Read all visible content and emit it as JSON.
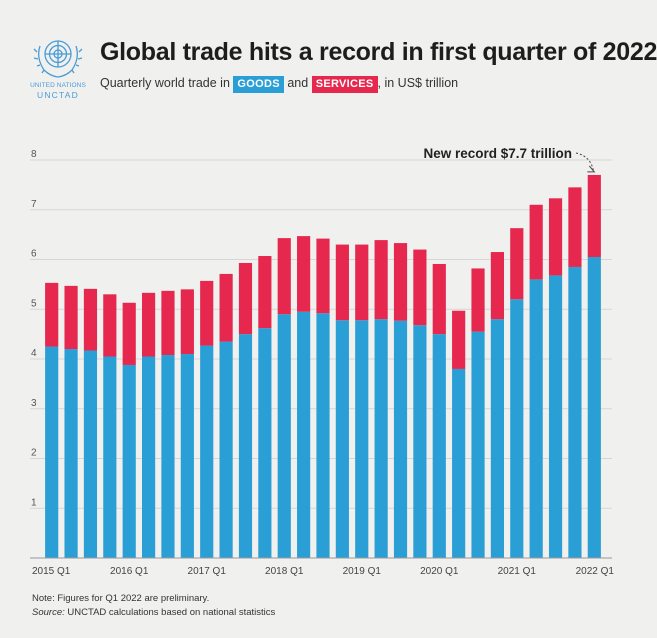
{
  "header": {
    "org_line1": "UNITED NATIONS",
    "org_line2": "UNCTAD",
    "title": "Global trade hits a record in first quarter of 2022",
    "subtitle_prefix": "Quarterly world trade in",
    "subtitle_mid": "and",
    "subtitle_suffix": ", in US$ trillion"
  },
  "colors": {
    "goods": "#2a9fd6",
    "services": "#e6284e",
    "background": "#f0f0ef",
    "grid": "#d6d6d6"
  },
  "chart_data": {
    "type": "bar",
    "stacked": true,
    "categories": [
      "2015 Q1",
      "2015 Q2",
      "2015 Q3",
      "2015 Q4",
      "2016 Q1",
      "2016 Q2",
      "2016 Q3",
      "2016 Q4",
      "2017 Q1",
      "2017 Q2",
      "2017 Q3",
      "2017 Q4",
      "2018 Q1",
      "2018 Q2",
      "2018 Q3",
      "2018 Q4",
      "2019 Q1",
      "2019 Q2",
      "2019 Q3",
      "2019 Q4",
      "2020 Q1",
      "2020 Q2",
      "2020 Q3",
      "2020 Q4",
      "2021 Q1",
      "2021 Q2",
      "2021 Q3",
      "2021 Q4",
      "2022 Q1"
    ],
    "tick_labels": [
      "2015 Q1",
      "2016 Q1",
      "2017 Q1",
      "2018 Q1",
      "2019 Q1",
      "2020 Q1",
      "2021 Q1",
      "2022 Q1"
    ],
    "series": [
      {
        "name": "GOODS",
        "color": "#2a9fd6",
        "values": [
          4.25,
          4.2,
          4.17,
          4.05,
          3.88,
          4.05,
          4.08,
          4.1,
          4.27,
          4.35,
          4.5,
          4.62,
          4.9,
          4.95,
          4.92,
          4.78,
          4.78,
          4.8,
          4.77,
          4.68,
          4.5,
          3.8,
          4.55,
          4.8,
          5.2,
          5.6,
          5.68,
          5.85,
          6.05
        ]
      },
      {
        "name": "SERVICES",
        "color": "#e6284e",
        "values": [
          1.28,
          1.27,
          1.24,
          1.25,
          1.25,
          1.28,
          1.29,
          1.3,
          1.3,
          1.36,
          1.43,
          1.45,
          1.53,
          1.52,
          1.5,
          1.52,
          1.52,
          1.59,
          1.56,
          1.52,
          1.41,
          1.17,
          1.27,
          1.35,
          1.43,
          1.5,
          1.55,
          1.6,
          1.65
        ]
      }
    ],
    "ylim": [
      0,
      8
    ],
    "yticks": [
      1,
      2,
      3,
      4,
      5,
      6,
      7,
      8
    ],
    "grid": true,
    "annotation": "New record $7.7 trillion",
    "title": "Global trade hits a record in first quarter of 2022",
    "xlabel": "",
    "ylabel": ""
  },
  "footer": {
    "note": "Note: Figures for Q1 2022 are preliminary.",
    "source_prefix": "Source:",
    "source_text": " UNCTAD calculations based on national statistics"
  }
}
